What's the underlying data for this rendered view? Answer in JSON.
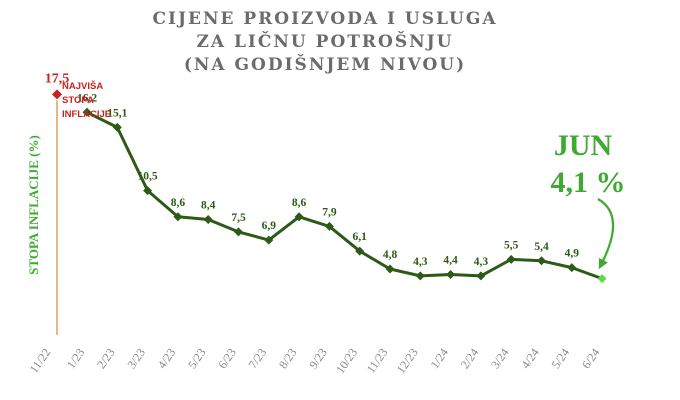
{
  "chart_data": {
    "type": "line",
    "title": [
      "CIJENE PROIZVODA I USLUGA",
      "ZA LIČNU POTROŠNJU",
      "(NA GODIŠNJEM NIVOU)"
    ],
    "ylabel": "STOPA INFLACIJE (%)",
    "xlabel": "",
    "categories": [
      "11/22",
      "1/23",
      "2/23",
      "3/23",
      "4/23",
      "5/23",
      "6/23",
      "7/23",
      "8/23",
      "9/23",
      "10/23",
      "11/23",
      "12/23",
      "1/24",
      "2/24",
      "3/24",
      "4/24",
      "5/24",
      "6/24"
    ],
    "series": [
      {
        "values": [
          17.5,
          16.2,
          15.1,
          10.5,
          8.6,
          8.4,
          7.5,
          6.9,
          8.6,
          7.9,
          6.1,
          4.8,
          4.3,
          4.4,
          4.3,
          5.5,
          5.4,
          4.9,
          4.1
        ],
        "labels": [
          "17,5",
          "16,2",
          "15,1",
          "10,5",
          "8,6",
          "8,4",
          "7,5",
          "6,9",
          "8,6",
          "7,9",
          "6,1",
          "4,8",
          "4,3",
          "4,4",
          "4,3",
          "5,5",
          "5,4",
          "4,9",
          ""
        ]
      }
    ],
    "ylim": [
      0,
      20
    ],
    "grid": false,
    "peak_annotation": [
      "NAJVIŠA",
      "STOPA",
      "INFLACIJE"
    ],
    "callout": {
      "month": "JUN",
      "value": "4,1 %"
    },
    "colors": {
      "line": "#2d5a16",
      "peak": "#cc1f1f",
      "callout": "#3faa33",
      "axis": "#d9a06a",
      "tick": "#8a8a8a",
      "title": "#6b6b6b",
      "last_marker": "#5ddb50"
    }
  }
}
